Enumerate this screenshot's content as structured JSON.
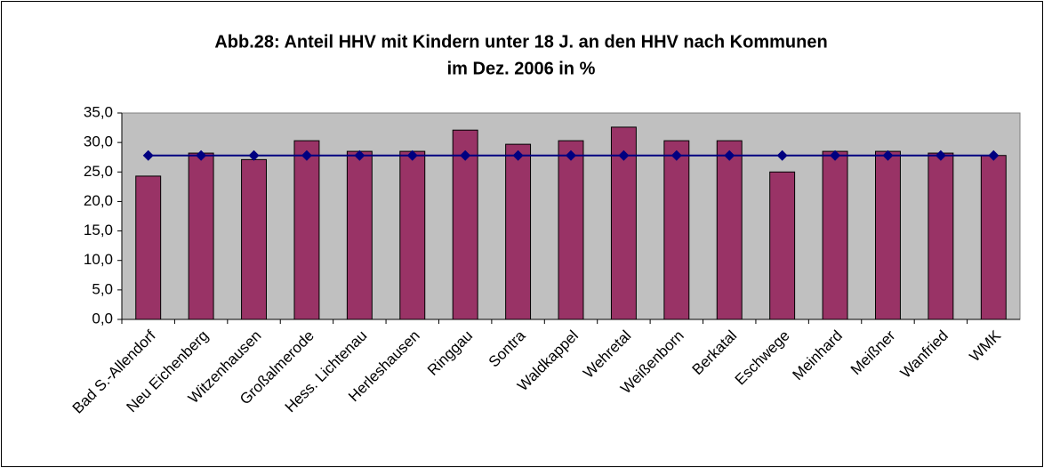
{
  "chart_data": {
    "type": "bar_line",
    "title": [
      "Abb.28: Anteil HHV mit Kindern unter 18 J. an den HHV nach Kommunen",
      "im Dez. 2006 in %"
    ],
    "categories": [
      "Bad S.-Allendorf",
      "Neu Eichenberg",
      "Witzenhausen",
      "Großalmerode",
      "Hess. Lichtenau",
      "Herleshausen",
      "Ringgau",
      "Sontra",
      "Waldkappel",
      "Wehretal",
      "Weißenborn",
      "Berkatal",
      "Eschwege",
      "Meinhard",
      "Meißner",
      "Wanfried",
      "WMK"
    ],
    "series": [
      {
        "type": "bar",
        "color": "#993366",
        "values": [
          24.3,
          28.2,
          27.1,
          30.3,
          28.5,
          28.5,
          32.1,
          29.7,
          30.3,
          32.6,
          30.3,
          30.3,
          25.0,
          28.5,
          28.5,
          28.2,
          27.8
        ]
      },
      {
        "type": "line",
        "color": "#000080",
        "values": [
          27.8,
          27.8,
          27.8,
          27.8,
          27.8,
          27.8,
          27.8,
          27.8,
          27.8,
          27.8,
          27.8,
          27.8,
          27.8,
          27.8,
          27.8,
          27.8,
          27.8
        ]
      }
    ],
    "ylim": [
      0,
      35
    ],
    "yticks": [
      {
        "value": 0,
        "label": "0,0"
      },
      {
        "value": 5,
        "label": "5,0"
      },
      {
        "value": 10,
        "label": "10,0"
      },
      {
        "value": 15,
        "label": "15,0"
      },
      {
        "value": 20,
        "label": "20,0"
      },
      {
        "value": 25,
        "label": "25,0"
      },
      {
        "value": 30,
        "label": "30,0"
      },
      {
        "value": 35,
        "label": "35,0"
      }
    ],
    "grid": false
  }
}
